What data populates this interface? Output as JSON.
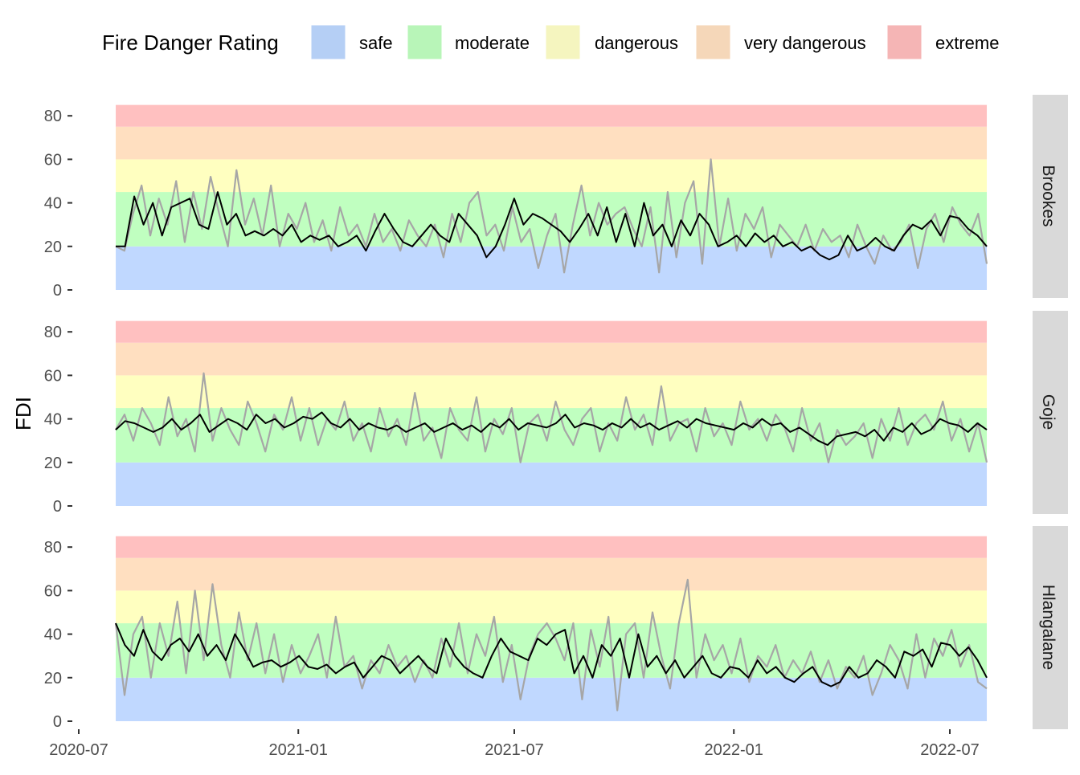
{
  "chart_data": {
    "type": "line",
    "title": "",
    "ylabel": "FDI",
    "xlabel": "",
    "ylim": [
      0,
      85
    ],
    "y_ticks": [
      "0",
      "20",
      "40",
      "60",
      "80"
    ],
    "x_ticks": [
      "2020-07",
      "2021-01",
      "2021-07",
      "2022-01",
      "2022-07"
    ],
    "date_range": [
      "2020-08-01",
      "2022-08-01"
    ],
    "legend": {
      "title": "Fire Danger Rating",
      "placement": "top",
      "items": [
        {
          "label": "safe",
          "range": [
            0,
            20
          ],
          "color": "#c0d8ff",
          "key_color": "#b5cff5"
        },
        {
          "label": "moderate",
          "range": [
            20,
            45
          ],
          "color": "#c0ffc0",
          "key_color": "#b8f5b8"
        },
        {
          "label": "dangerous",
          "range": [
            45,
            60
          ],
          "color": "#ffffc0",
          "key_color": "#f5f5bf"
        },
        {
          "label": "very dangerous",
          "range": [
            60,
            75
          ],
          "color": "#ffdfc0",
          "key_color": "#f5d7b9"
        },
        {
          "label": "extreme",
          "range": [
            75,
            85
          ],
          "color": "#ffc0c0",
          "key_color": "#f5b5b5"
        }
      ]
    },
    "series_styles": {
      "raw_color": "#a6a6a6",
      "smooth_color": "#000000"
    },
    "panels": [
      {
        "name": "Brookes",
        "raw": [
          20,
          18,
          35,
          48,
          25,
          42,
          30,
          50,
          22,
          45,
          28,
          52,
          35,
          20,
          55,
          30,
          42,
          25,
          48,
          20,
          35,
          28,
          40,
          22,
          32,
          18,
          38,
          25,
          30,
          20,
          35,
          22,
          28,
          18,
          32,
          25,
          20,
          30,
          15,
          35,
          22,
          40,
          45,
          25,
          30,
          18,
          38,
          22,
          28,
          10,
          25,
          35,
          8,
          30,
          48,
          25,
          40,
          30,
          35,
          38,
          28,
          20,
          38,
          8,
          45,
          15,
          40,
          50,
          12,
          60,
          20,
          42,
          18,
          35,
          28,
          38,
          15,
          30,
          25,
          20,
          30,
          18,
          28,
          22,
          25,
          15,
          30,
          20,
          12,
          25,
          18,
          22,
          30,
          10,
          28,
          35,
          22,
          38,
          30,
          25,
          35,
          12
        ],
        "smooth": [
          20,
          20,
          43,
          30,
          40,
          25,
          38,
          40,
          42,
          30,
          28,
          45,
          30,
          35,
          25,
          27,
          25,
          28,
          25,
          30,
          22,
          25,
          23,
          25,
          20,
          22,
          25,
          18,
          27,
          35,
          28,
          22,
          20,
          25,
          30,
          25,
          22,
          35,
          30,
          25,
          15,
          20,
          30,
          42,
          30,
          35,
          33,
          30,
          27,
          22,
          28,
          35,
          25,
          38,
          22,
          35,
          20,
          40,
          25,
          30,
          20,
          32,
          25,
          35,
          30,
          20,
          22,
          25,
          20,
          26,
          22,
          25,
          20,
          22,
          18,
          20,
          16,
          14,
          16,
          25,
          18,
          20,
          24,
          20,
          18,
          25,
          30,
          28,
          32,
          25,
          34,
          33,
          28,
          25,
          20
        ]
      },
      {
        "name": "Goje",
        "raw": [
          35,
          42,
          30,
          45,
          38,
          28,
          50,
          32,
          40,
          25,
          61,
          30,
          45,
          35,
          28,
          48,
          38,
          25,
          42,
          35,
          50,
          30,
          45,
          28,
          40,
          35,
          48,
          30,
          38,
          25,
          45,
          32,
          40,
          28,
          52,
          30,
          36,
          22,
          45,
          35,
          30,
          50,
          25,
          40,
          33,
          45,
          20,
          38,
          42,
          30,
          48,
          35,
          28,
          40,
          45,
          25,
          38,
          30,
          50,
          35,
          42,
          28,
          55,
          30,
          38,
          40,
          25,
          45,
          32,
          38,
          28,
          48,
          35,
          40,
          30,
          42,
          36,
          25,
          45,
          30,
          38,
          20,
          35,
          28,
          32,
          38,
          22,
          40,
          30,
          45,
          28,
          38,
          42,
          35,
          48,
          30,
          40,
          25,
          38,
          20
        ],
        "smooth": [
          35,
          39,
          38,
          36,
          34,
          36,
          40,
          35,
          38,
          42,
          34,
          37,
          40,
          38,
          35,
          42,
          38,
          40,
          36,
          38,
          41,
          40,
          43,
          38,
          36,
          40,
          35,
          38,
          36,
          35,
          37,
          34,
          36,
          38,
          34,
          36,
          38,
          35,
          37,
          34,
          38,
          36,
          40,
          35,
          38,
          37,
          36,
          38,
          42,
          36,
          38,
          37,
          35,
          38,
          36,
          40,
          36,
          38,
          35,
          37,
          39,
          36,
          40,
          38,
          37,
          36,
          35,
          38,
          36,
          40,
          37,
          38,
          34,
          36,
          33,
          30,
          28,
          32,
          33,
          34,
          32,
          35,
          30,
          36,
          34,
          38,
          33,
          35,
          40,
          38,
          37,
          34,
          38,
          35
        ]
      },
      {
        "name": "Hlangalane",
        "raw": [
          45,
          12,
          40,
          48,
          20,
          45,
          30,
          55,
          22,
          60,
          28,
          63,
          35,
          20,
          50,
          28,
          45,
          22,
          40,
          18,
          35,
          22,
          30,
          40,
          20,
          48,
          25,
          30,
          15,
          28,
          22,
          35,
          25,
          30,
          18,
          28,
          20,
          38,
          25,
          45,
          22,
          40,
          30,
          48,
          18,
          35,
          10,
          30,
          40,
          45,
          38,
          28,
          45,
          10,
          42,
          25,
          48,
          5,
          40,
          45,
          20,
          50,
          30,
          15,
          45,
          65,
          20,
          40,
          28,
          35,
          22,
          38,
          18,
          30,
          25,
          35,
          20,
          28,
          22,
          32,
          18,
          28,
          15,
          25,
          20,
          30,
          12,
          22,
          35,
          28,
          15,
          40,
          20,
          38,
          30,
          42,
          25,
          35,
          18,
          15
        ],
        "smooth": [
          45,
          35,
          30,
          42,
          32,
          28,
          35,
          38,
          32,
          40,
          30,
          35,
          28,
          40,
          33,
          25,
          27,
          28,
          25,
          27,
          30,
          25,
          24,
          26,
          22,
          25,
          27,
          20,
          25,
          30,
          28,
          22,
          26,
          30,
          25,
          22,
          38,
          30,
          25,
          22,
          20,
          30,
          38,
          32,
          30,
          28,
          38,
          35,
          40,
          42,
          22,
          30,
          20,
          35,
          30,
          38,
          20,
          40,
          25,
          30,
          22,
          28,
          20,
          25,
          30,
          22,
          20,
          25,
          24,
          20,
          28,
          22,
          25,
          20,
          18,
          22,
          25,
          18,
          16,
          18,
          25,
          20,
          22,
          28,
          25,
          20,
          32,
          30,
          33,
          25,
          36,
          35,
          30,
          34,
          28,
          20
        ]
      }
    ]
  }
}
